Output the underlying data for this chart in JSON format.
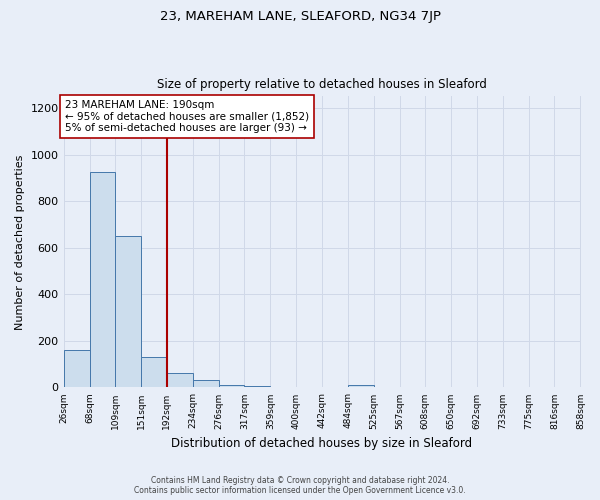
{
  "title": "23, MAREHAM LANE, SLEAFORD, NG34 7JP",
  "subtitle": "Size of property relative to detached houses in Sleaford",
  "xlabel": "Distribution of detached houses by size in Sleaford",
  "ylabel": "Number of detached properties",
  "bar_color": "#ccdded",
  "bar_edge_color": "#4477aa",
  "background_color": "#e8eef8",
  "grid_color": "#d0d8e8",
  "vline_x": 192,
  "vline_color": "#aa0000",
  "annotation_line1": "23 MAREHAM LANE: 190sqm",
  "annotation_line2": "← 95% of detached houses are smaller (1,852)",
  "annotation_line3": "5% of semi-detached houses are larger (93) →",
  "annotation_box_color": "#ffffff",
  "annotation_box_edge": "#aa0000",
  "bin_edges": [
    26,
    68,
    109,
    151,
    192,
    234,
    276,
    317,
    359,
    400,
    442,
    484,
    525,
    567,
    608,
    650,
    692,
    733,
    775,
    816,
    858
  ],
  "bin_heights": [
    160,
    925,
    650,
    130,
    60,
    30,
    10,
    5,
    0,
    0,
    0,
    10,
    0,
    0,
    0,
    0,
    0,
    0,
    0,
    0
  ],
  "tick_labels": [
    "26sqm",
    "68sqm",
    "109sqm",
    "151sqm",
    "192sqm",
    "234sqm",
    "276sqm",
    "317sqm",
    "359sqm",
    "400sqm",
    "442sqm",
    "484sqm",
    "525sqm",
    "567sqm",
    "608sqm",
    "650sqm",
    "692sqm",
    "733sqm",
    "775sqm",
    "816sqm",
    "858sqm"
  ],
  "ylim": [
    0,
    1250
  ],
  "yticks": [
    0,
    200,
    400,
    600,
    800,
    1000,
    1200
  ],
  "footer_line1": "Contains HM Land Registry data © Crown copyright and database right 2024.",
  "footer_line2": "Contains public sector information licensed under the Open Government Licence v3.0."
}
